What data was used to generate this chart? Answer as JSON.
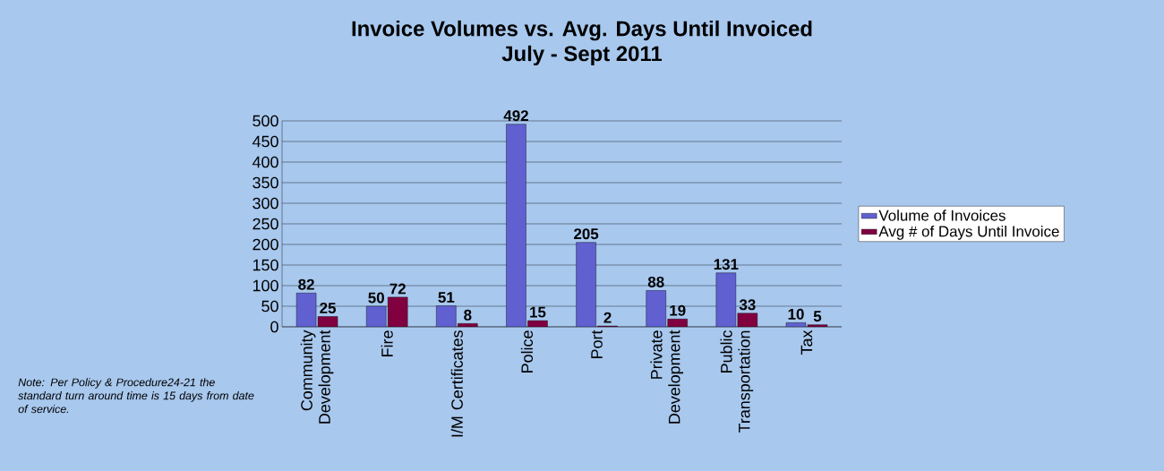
{
  "chart_data": {
    "type": "bar",
    "title": "Invoice Volumes vs. Avg. Days Until Invoiced",
    "subtitle": "July - Sept 2011",
    "categories": [
      "Community Development",
      "Fire",
      "I/M Certificates",
      "Police",
      "Port",
      "Private Development",
      "Public Transportation",
      "Tax"
    ],
    "series": [
      {
        "name": "Volume of Invoices",
        "color": "#6060d0",
        "values": [
          82,
          50,
          51,
          492,
          205,
          88,
          131,
          10
        ]
      },
      {
        "name": "Avg # of Days Until Invoice",
        "color": "#800040",
        "values": [
          25,
          72,
          8,
          15,
          2,
          19,
          33,
          5
        ]
      }
    ],
    "ylim": [
      0,
      500
    ],
    "yticks": [
      0,
      50,
      100,
      150,
      200,
      250,
      300,
      350,
      400,
      450,
      500
    ],
    "grid": "y",
    "legend": "right",
    "data_labels": true,
    "annotations": [
      "Note: Per Policy & Procedure24-21 the standard turn around time is 15 days from date of service."
    ]
  }
}
